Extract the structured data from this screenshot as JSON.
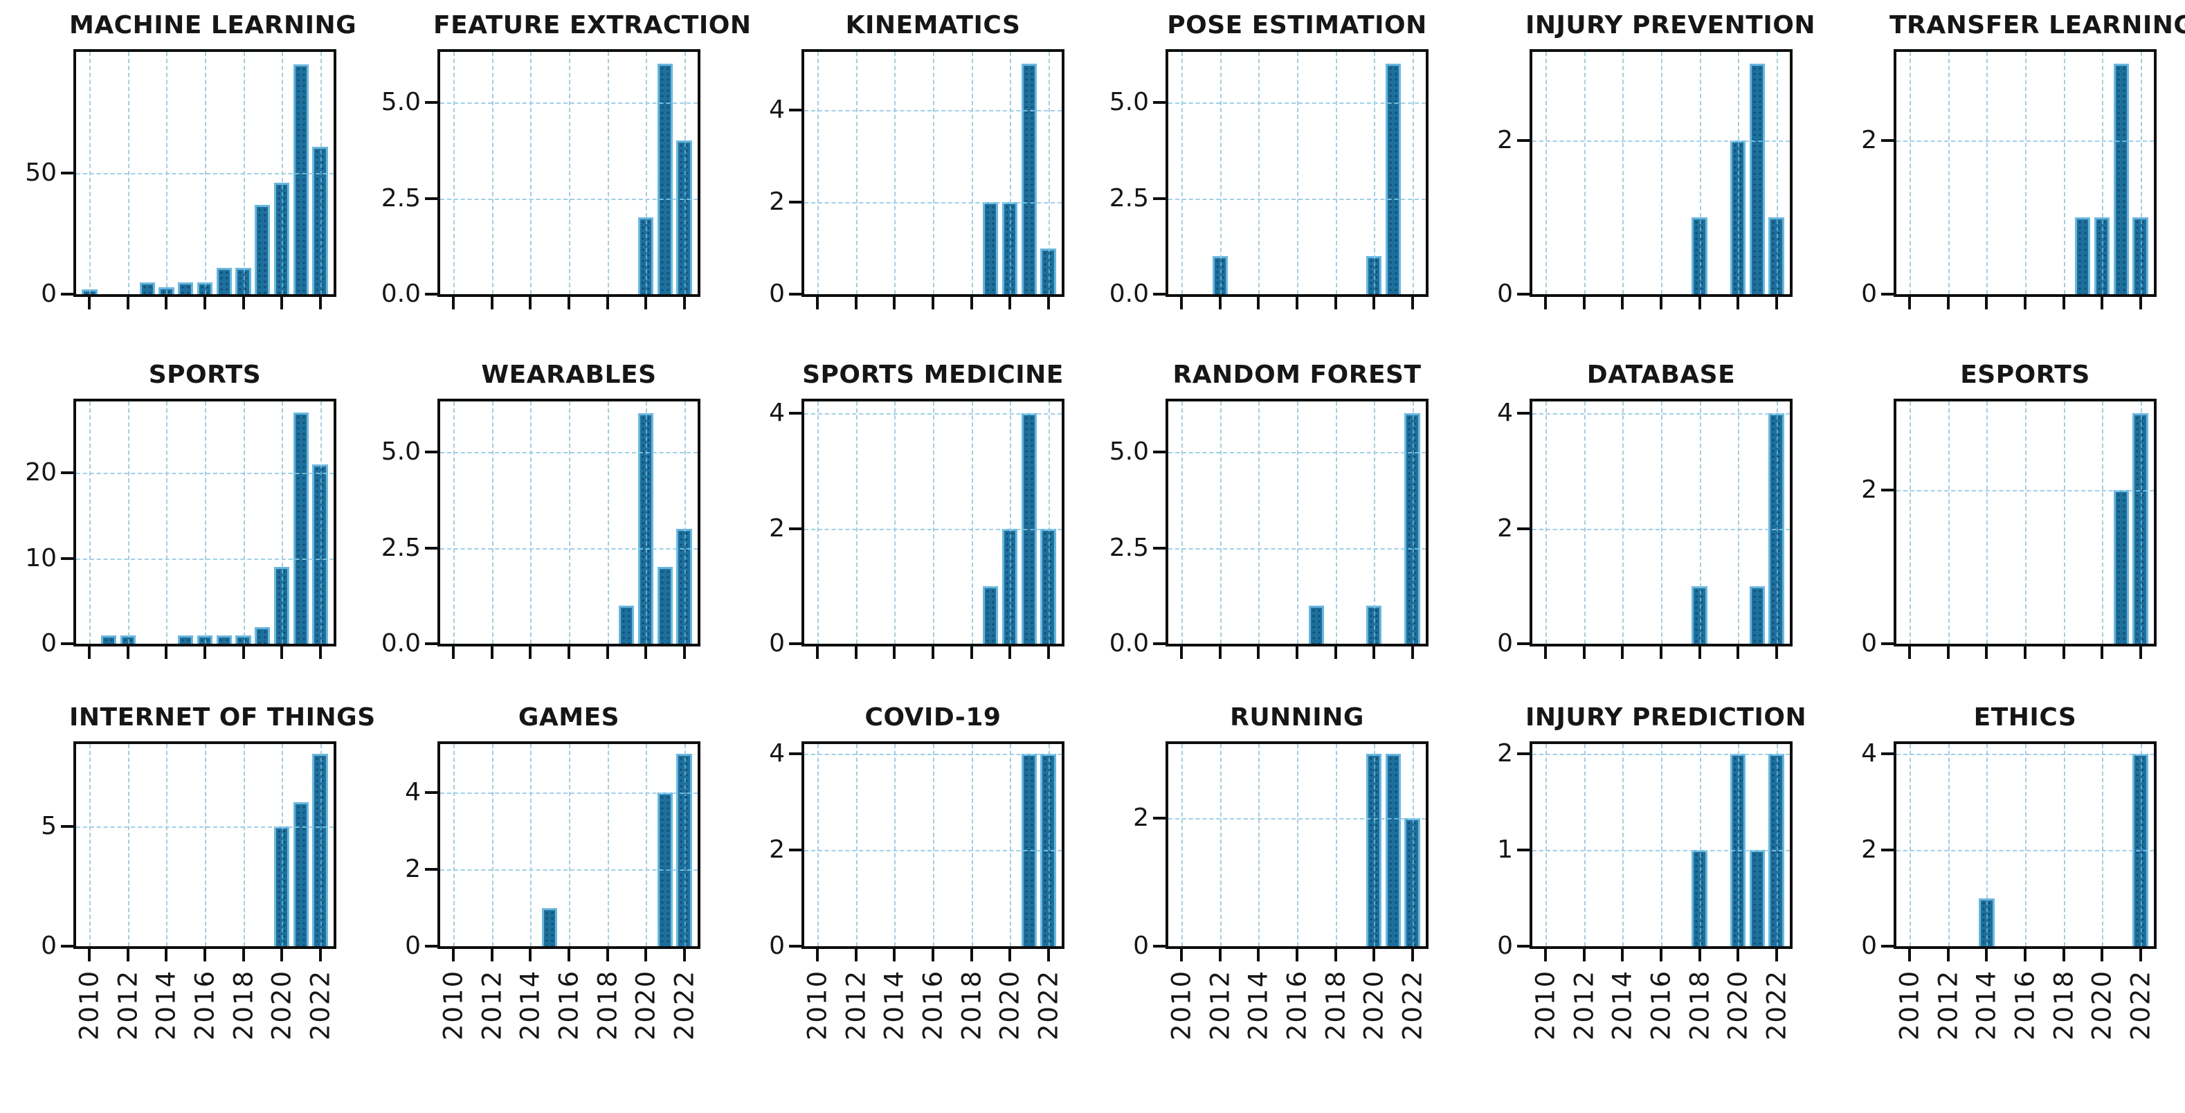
{
  "figure": {
    "kind": "matplotlib-style subplot grid of yearly publication counts per keyword",
    "rows": 3,
    "cols": 6,
    "background": "#ffffff"
  },
  "colors": {
    "bar_fill": "#1d6f9c",
    "bar_edge_highlight": "#6ab7de",
    "grid_line": "#bcbcbc",
    "grid_overlay_tint": "#96d7f5",
    "axis_frame": "#0e0e0e",
    "text": "#161616"
  },
  "axis": {
    "xticks": [
      2010,
      2012,
      2014,
      2016,
      2018,
      2020,
      2022
    ],
    "xtick_labels": [
      "2010",
      "2012",
      "2014",
      "2016",
      "2018",
      "2020",
      "2022"
    ],
    "xlim": [
      2009.3,
      2022.7
    ],
    "bar_width_years": 0.8,
    "grid": true,
    "xtick_label_rotation_deg": 90
  },
  "chart_data": [
    {
      "type": "bar",
      "title": "MACHINE LEARNING",
      "x": [
        2010,
        2013,
        2014,
        2015,
        2016,
        2017,
        2018,
        2019,
        2020,
        2021,
        2022
      ],
      "values": [
        2,
        5,
        3,
        5,
        5,
        11,
        11,
        37,
        46,
        95,
        61
      ],
      "yticks": [
        {
          "v": 0,
          "label": "0"
        },
        {
          "v": 50,
          "label": "50"
        }
      ],
      "ylim": [
        0,
        100
      ]
    },
    {
      "type": "bar",
      "title": "FEATURE EXTRACTION",
      "x": [
        2020,
        2021,
        2022
      ],
      "values": [
        2,
        6,
        4
      ],
      "yticks": [
        {
          "v": 0,
          "label": "0.0"
        },
        {
          "v": 2.5,
          "label": "2.5"
        },
        {
          "v": 5,
          "label": "5.0"
        }
      ],
      "ylim": [
        0,
        6.3
      ]
    },
    {
      "type": "bar",
      "title": "KINEMATICS",
      "x": [
        2019,
        2020,
        2021,
        2022
      ],
      "values": [
        2,
        2,
        5,
        1
      ],
      "yticks": [
        {
          "v": 0,
          "label": "0"
        },
        {
          "v": 2,
          "label": "2"
        },
        {
          "v": 4,
          "label": "4"
        }
      ],
      "ylim": [
        0,
        5.25
      ]
    },
    {
      "type": "bar",
      "title": "POSE ESTIMATION",
      "x": [
        2012,
        2020,
        2021
      ],
      "values": [
        1,
        1,
        6
      ],
      "yticks": [
        {
          "v": 0,
          "label": "0.0"
        },
        {
          "v": 2.5,
          "label": "2.5"
        },
        {
          "v": 5,
          "label": "5.0"
        }
      ],
      "ylim": [
        0,
        6.3
      ]
    },
    {
      "type": "bar",
      "title": "INJURY PREVENTION",
      "x": [
        2018,
        2020,
        2021,
        2022
      ],
      "values": [
        1,
        2,
        3,
        1
      ],
      "yticks": [
        {
          "v": 0,
          "label": "0"
        },
        {
          "v": 2,
          "label": "2"
        }
      ],
      "ylim": [
        0,
        3.15
      ]
    },
    {
      "type": "bar",
      "title": "TRANSFER LEARNING",
      "x": [
        2019,
        2020,
        2021,
        2022
      ],
      "values": [
        1,
        1,
        3,
        1
      ],
      "yticks": [
        {
          "v": 0,
          "label": "0"
        },
        {
          "v": 2,
          "label": "2"
        }
      ],
      "ylim": [
        0,
        3.15
      ]
    },
    {
      "type": "bar",
      "title": "SPORTS",
      "x": [
        2011,
        2012,
        2015,
        2016,
        2017,
        2018,
        2019,
        2020,
        2021,
        2022
      ],
      "values": [
        1,
        1,
        1,
        1,
        1,
        1,
        2,
        9,
        27,
        21
      ],
      "yticks": [
        {
          "v": 0,
          "label": "0"
        },
        {
          "v": 10,
          "label": "10"
        },
        {
          "v": 20,
          "label": "20"
        }
      ],
      "ylim": [
        0,
        28.3
      ]
    },
    {
      "type": "bar",
      "title": "WEARABLES",
      "x": [
        2019,
        2020,
        2021,
        2022
      ],
      "values": [
        1,
        6,
        2,
        3
      ],
      "yticks": [
        {
          "v": 0,
          "label": "0.0"
        },
        {
          "v": 2.5,
          "label": "2.5"
        },
        {
          "v": 5,
          "label": "5.0"
        }
      ],
      "ylim": [
        0,
        6.3
      ]
    },
    {
      "type": "bar",
      "title": "SPORTS MEDICINE",
      "x": [
        2019,
        2020,
        2021,
        2022
      ],
      "values": [
        1,
        2,
        4,
        2
      ],
      "yticks": [
        {
          "v": 0,
          "label": "0"
        },
        {
          "v": 2,
          "label": "2"
        },
        {
          "v": 4,
          "label": "4"
        }
      ],
      "ylim": [
        0,
        4.2
      ]
    },
    {
      "type": "bar",
      "title": "RANDOM FOREST",
      "x": [
        2017,
        2020,
        2022
      ],
      "values": [
        1,
        1,
        6
      ],
      "yticks": [
        {
          "v": 0,
          "label": "0.0"
        },
        {
          "v": 2.5,
          "label": "2.5"
        },
        {
          "v": 5,
          "label": "5.0"
        }
      ],
      "ylim": [
        0,
        6.3
      ]
    },
    {
      "type": "bar",
      "title": "DATABASE",
      "x": [
        2018,
        2021,
        2022
      ],
      "values": [
        1,
        1,
        4
      ],
      "yticks": [
        {
          "v": 0,
          "label": "0"
        },
        {
          "v": 2,
          "label": "2"
        },
        {
          "v": 4,
          "label": "4"
        }
      ],
      "ylim": [
        0,
        4.2
      ]
    },
    {
      "type": "bar",
      "title": "ESPORTS",
      "x": [
        2021,
        2022
      ],
      "values": [
        2,
        3
      ],
      "yticks": [
        {
          "v": 0,
          "label": "0"
        },
        {
          "v": 2,
          "label": "2"
        }
      ],
      "ylim": [
        0,
        3.15
      ]
    },
    {
      "type": "bar",
      "title": "INTERNET OF THINGS",
      "x": [
        2020,
        2021,
        2022
      ],
      "values": [
        5,
        6,
        8
      ],
      "yticks": [
        {
          "v": 0,
          "label": "0"
        },
        {
          "v": 5,
          "label": "5"
        }
      ],
      "ylim": [
        0,
        8.4
      ]
    },
    {
      "type": "bar",
      "title": "GAMES",
      "x": [
        2015,
        2021,
        2022
      ],
      "values": [
        1,
        4,
        5
      ],
      "yticks": [
        {
          "v": 0,
          "label": "0"
        },
        {
          "v": 2,
          "label": "2"
        },
        {
          "v": 4,
          "label": "4"
        }
      ],
      "ylim": [
        0,
        5.25
      ]
    },
    {
      "type": "bar",
      "title": "COVID-19",
      "x": [
        2021,
        2022
      ],
      "values": [
        4,
        4
      ],
      "yticks": [
        {
          "v": 0,
          "label": "0"
        },
        {
          "v": 2,
          "label": "2"
        },
        {
          "v": 4,
          "label": "4"
        }
      ],
      "ylim": [
        0,
        4.2
      ]
    },
    {
      "type": "bar",
      "title": "RUNNING",
      "x": [
        2020,
        2021,
        2022
      ],
      "values": [
        3,
        3,
        2
      ],
      "yticks": [
        {
          "v": 0,
          "label": "0"
        },
        {
          "v": 2,
          "label": "2"
        }
      ],
      "ylim": [
        0,
        3.15
      ]
    },
    {
      "type": "bar",
      "title": "INJURY PREDICTION",
      "x": [
        2018,
        2020,
        2021,
        2022
      ],
      "values": [
        1,
        2,
        1,
        2
      ],
      "yticks": [
        {
          "v": 0,
          "label": "0"
        },
        {
          "v": 1,
          "label": "1"
        },
        {
          "v": 2,
          "label": "2"
        }
      ],
      "ylim": [
        0,
        2.1
      ]
    },
    {
      "type": "bar",
      "title": "ETHICS",
      "x": [
        2014,
        2022
      ],
      "values": [
        1,
        4
      ],
      "yticks": [
        {
          "v": 0,
          "label": "0"
        },
        {
          "v": 2,
          "label": "2"
        },
        {
          "v": 4,
          "label": "4"
        }
      ],
      "ylim": [
        0,
        4.2
      ]
    }
  ]
}
